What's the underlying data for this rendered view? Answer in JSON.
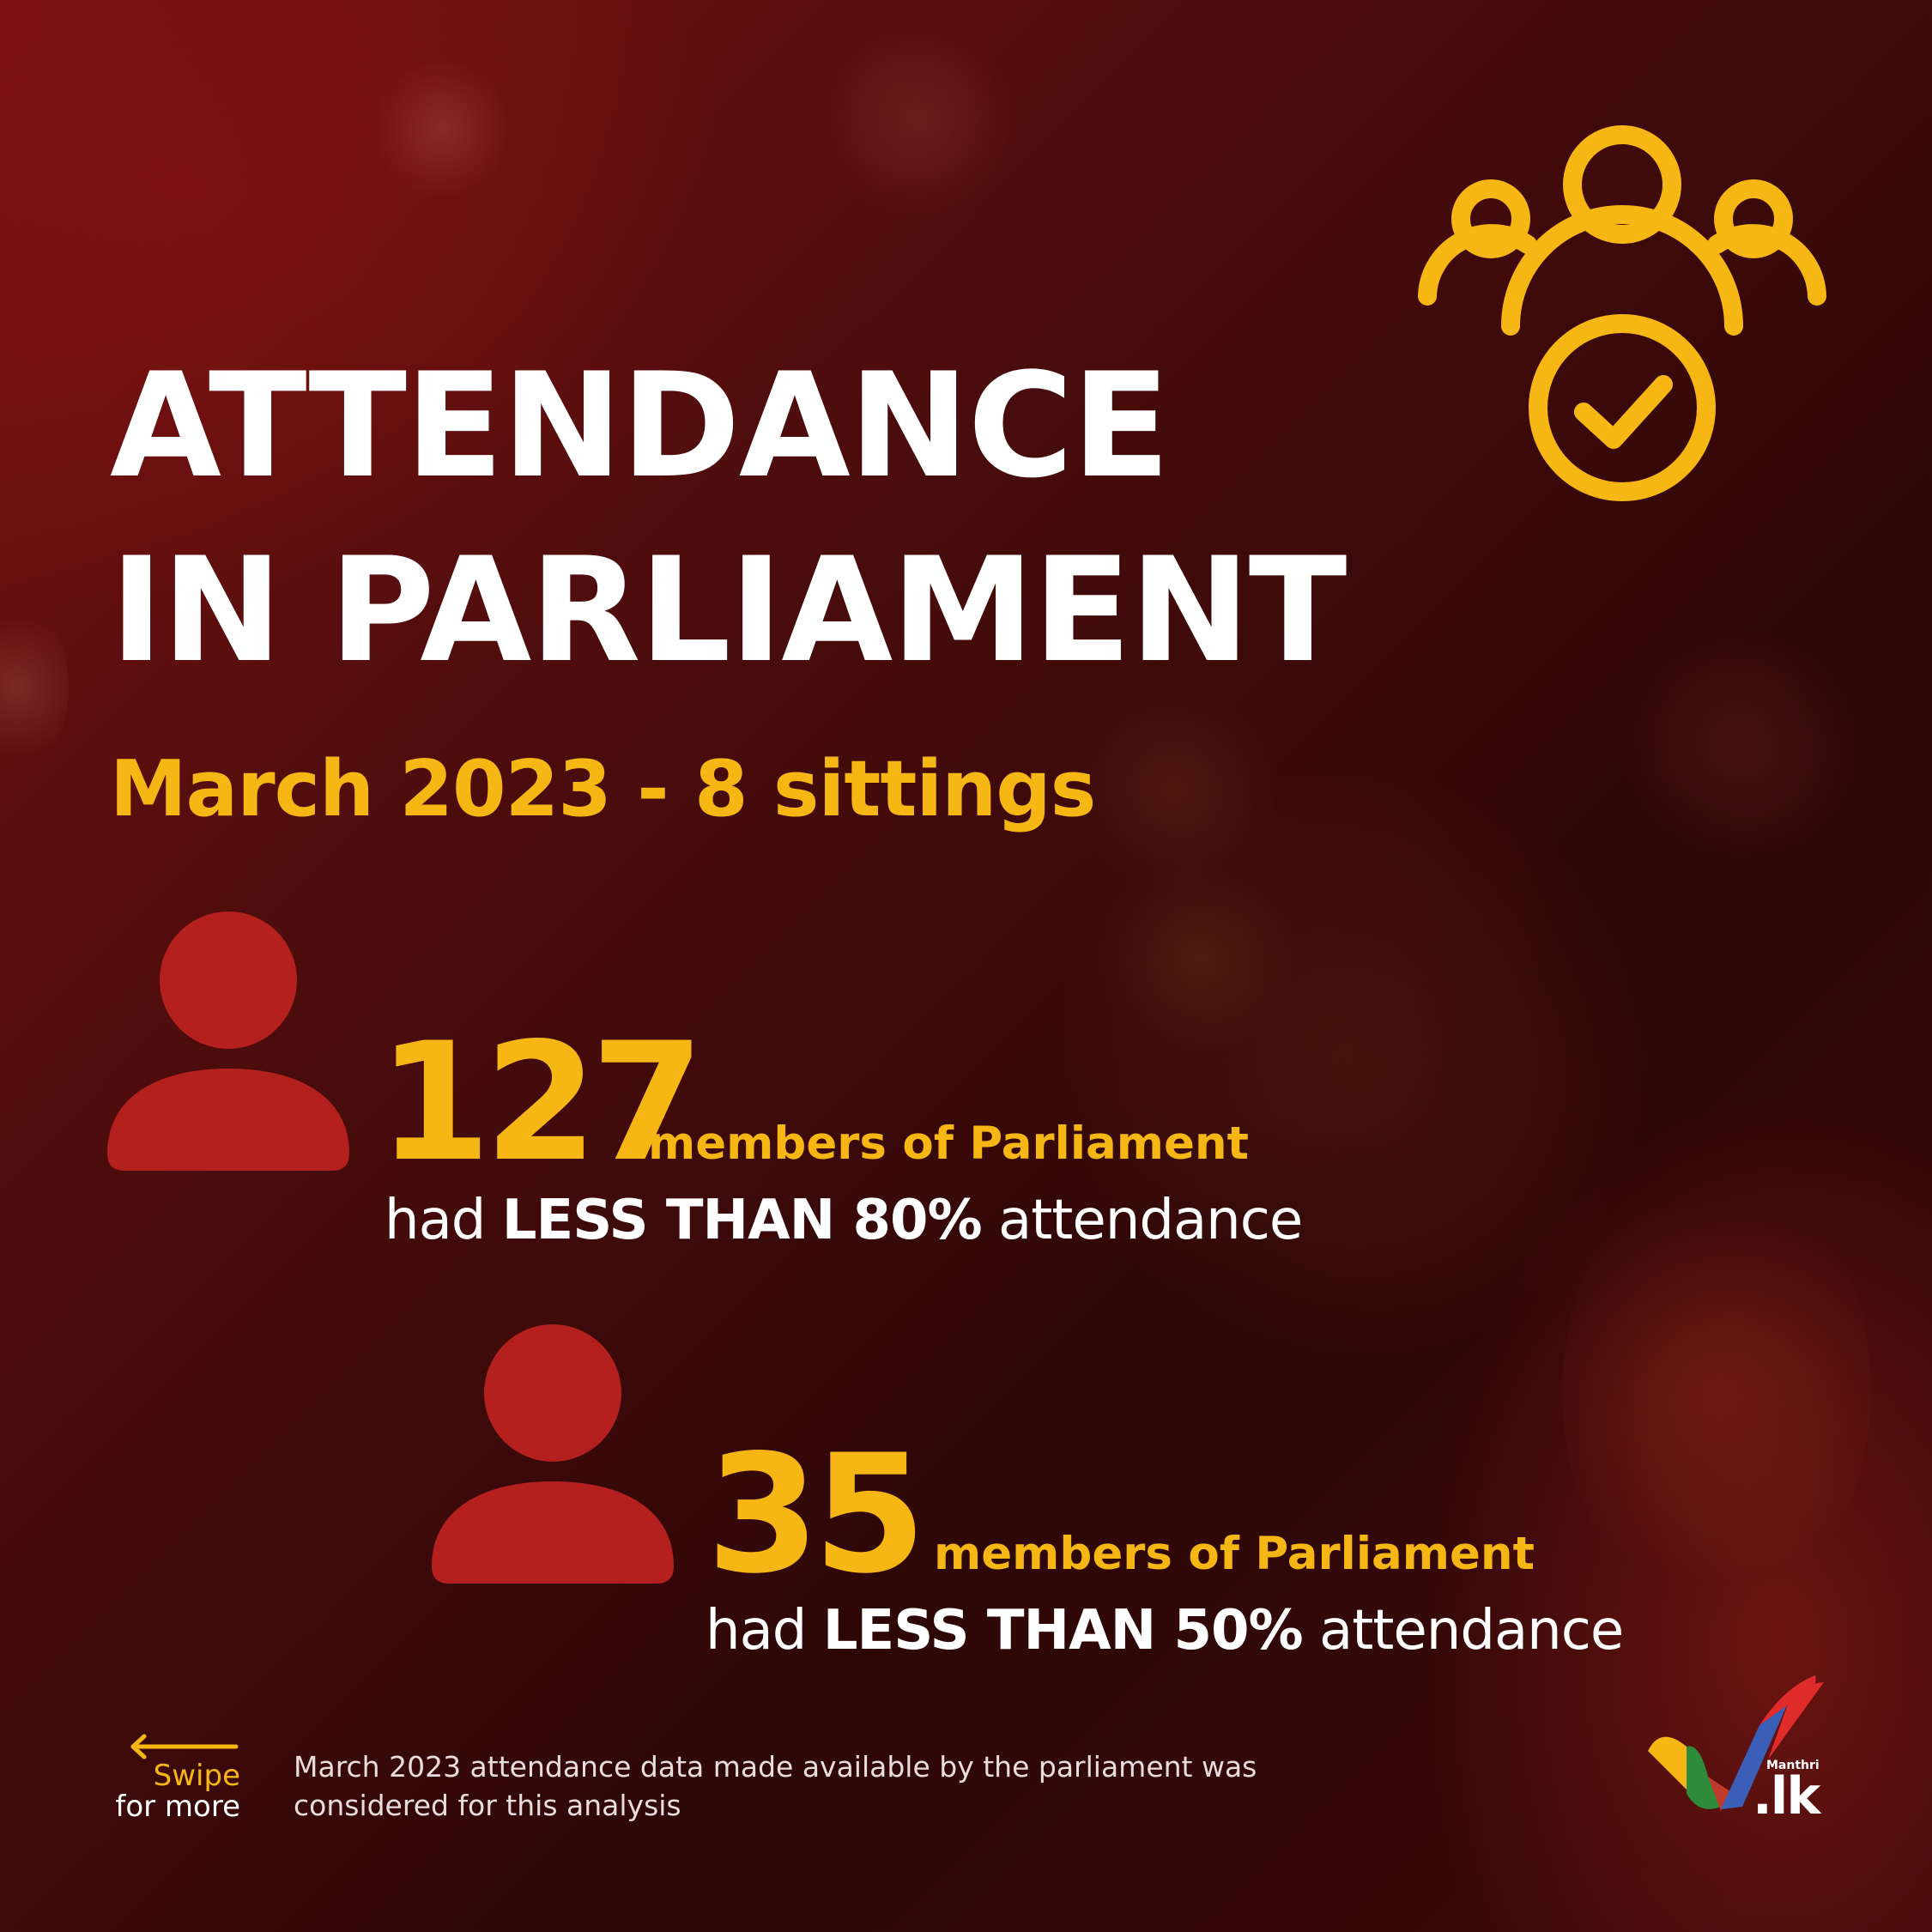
{
  "title": {
    "line1": "ATTENDANCE",
    "line2": "IN PARLIAMENT"
  },
  "subtitle": "March 2023 - 8 sittings",
  "stats": [
    {
      "count": "127",
      "members_label": "members of Parliament",
      "prefix": "had ",
      "emphasis": "LESS THAN 80%",
      "suffix": " attendance"
    },
    {
      "count": "35",
      "members_label": "members of Parliament",
      "prefix": "had ",
      "emphasis": "LESS THAN 50%",
      "suffix": " attendance"
    }
  ],
  "swipe": {
    "line1": "Swipe",
    "line2": "for more"
  },
  "footnote": "March 2023 attendance data made available by the parliament was considered for this analysis",
  "logo": {
    "small_text": "Manthri",
    "domain_text": ".lk"
  },
  "icons": {
    "header_icon": "group-check-icon",
    "person_icon": "person-icon",
    "swipe_icon": "arrow-left-icon"
  },
  "colors": {
    "accent_yellow": "#f6b613",
    "person_red": "#b3201d",
    "text_white": "#ffffff",
    "background_dark_red": "#3a0909"
  }
}
